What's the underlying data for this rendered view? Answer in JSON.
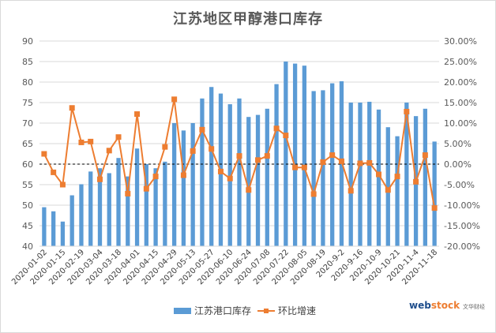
{
  "chart_data": {
    "type": "bar",
    "title": "江苏地区甲醇港口库存",
    "xlabel": "",
    "ylabel": "",
    "ylim": [
      40,
      90
    ],
    "y2lim": [
      -0.2,
      0.3
    ],
    "left_ticks": [
      "40",
      "45",
      "50",
      "55",
      "60",
      "65",
      "70",
      "75",
      "80",
      "85",
      "90"
    ],
    "right_ticks": [
      "-20.00%",
      "-15.00%",
      "-10.00%",
      "-5.00%",
      "0.00%",
      "5.00%",
      "10.00%",
      "15.00%",
      "20.00%",
      "25.00%",
      "30.00%"
    ],
    "x_tick_labels": [
      "2020-01-02",
      "2020-01-15",
      "2020-02-19",
      "2020-03-04",
      "2020-03-18",
      "2020-04-01",
      "2020-04-15",
      "2020-04-29",
      "2020-05-13",
      "2020-05-27",
      "2020-06-10",
      "2020-06-24",
      "2020-07-08",
      "2020-07-22",
      "2020-08-05",
      "2020-08-19",
      "2020-9-2",
      "2020-9-16",
      "2020-10-9",
      "2020-10-21",
      "2020-11-4",
      "2020-11-18"
    ],
    "legend_position": "bottom",
    "grid": "horizontal",
    "series": [
      {
        "name": "江苏港口库存",
        "type": "bar",
        "color": "#5b9bd5",
        "axis": "left",
        "values": [
          49.5,
          48.5,
          46.0,
          52.4,
          55.1,
          58.2,
          59.0,
          57.8,
          61.5,
          57.0,
          63.8,
          60.0,
          59.0,
          60.6,
          70.0,
          68.2,
          70.0,
          76.0,
          78.8,
          77.2,
          74.6,
          76.0,
          71.5,
          72.0,
          73.5,
          79.5,
          85.0,
          84.5,
          84.0,
          77.8,
          78.0,
          79.7,
          80.2,
          75.0,
          75.0,
          75.2,
          73.3,
          69.0,
          66.8,
          75.0,
          71.7,
          73.5,
          65.5
        ]
      },
      {
        "name": "环比增速",
        "type": "line",
        "color": "#ed7d31",
        "axis": "right",
        "values": [
          0.025,
          -0.02,
          -0.05,
          0.137,
          0.053,
          0.055,
          -0.037,
          0.033,
          0.066,
          -0.072,
          0.122,
          -0.06,
          -0.03,
          0.042,
          0.158,
          -0.027,
          0.032,
          0.084,
          0.037,
          -0.018,
          -0.035,
          0.02,
          -0.063,
          0.01,
          0.02,
          0.087,
          0.07,
          -0.008,
          -0.008,
          -0.073,
          0.005,
          0.022,
          0.007,
          -0.065,
          0.002,
          0.003,
          -0.025,
          -0.063,
          -0.03,
          0.128,
          -0.043,
          0.022,
          -0.107
        ]
      }
    ]
  },
  "watermark": {
    "text_a": "web",
    "text_b": "stock",
    "sub": "文华财经"
  }
}
